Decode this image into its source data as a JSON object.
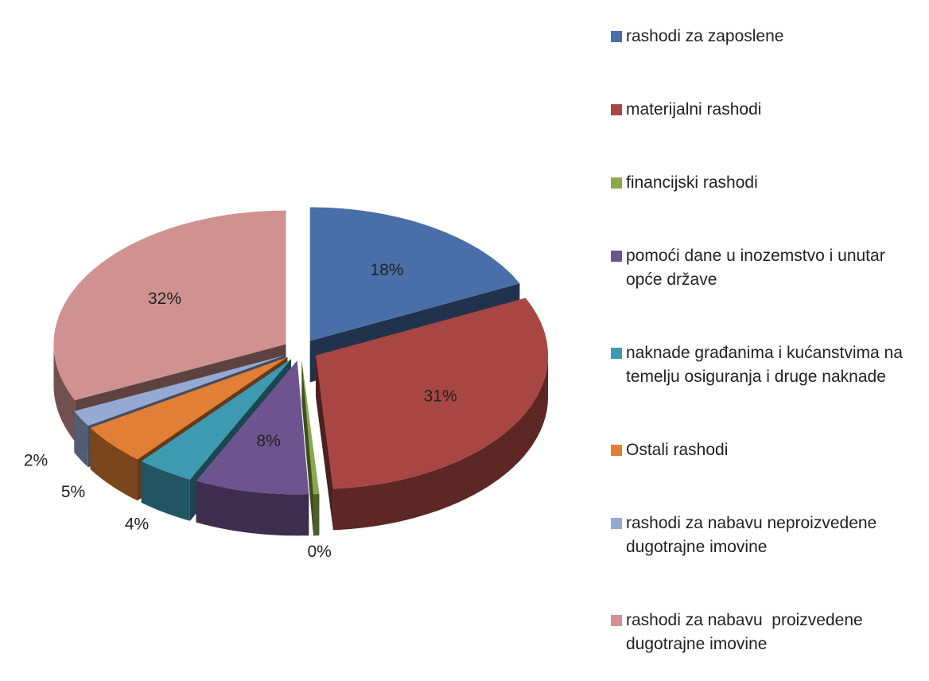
{
  "chart_data": {
    "type": "pie3d",
    "categories": [
      "rashodi za zaposlene",
      "materijalni rashodi",
      "financijski rashodi",
      "pomoći dane u inozemstvo i unutar opće države",
      "naknade građanima i kućanstvima na temelju osiguranja i druge naknade",
      "Ostali rashodi",
      "rashodi za nabavu neproizvedene dugotrajne imovine",
      "rashodi za nabavu  proizvedene dugotrajne imovine"
    ],
    "values": [
      18,
      31,
      0.4,
      8,
      4,
      5,
      2,
      32
    ],
    "value_labels": [
      "18%",
      "31%",
      "0%",
      "8%",
      "4%",
      "5%",
      "2%",
      "32%"
    ],
    "colors": [
      "#4a6fa8",
      "#a84644",
      "#8aaa4a",
      "#6e548f",
      "#3d9ab0",
      "#e07f35",
      "#95a9d2",
      "#d09291"
    ],
    "legend": "right"
  }
}
